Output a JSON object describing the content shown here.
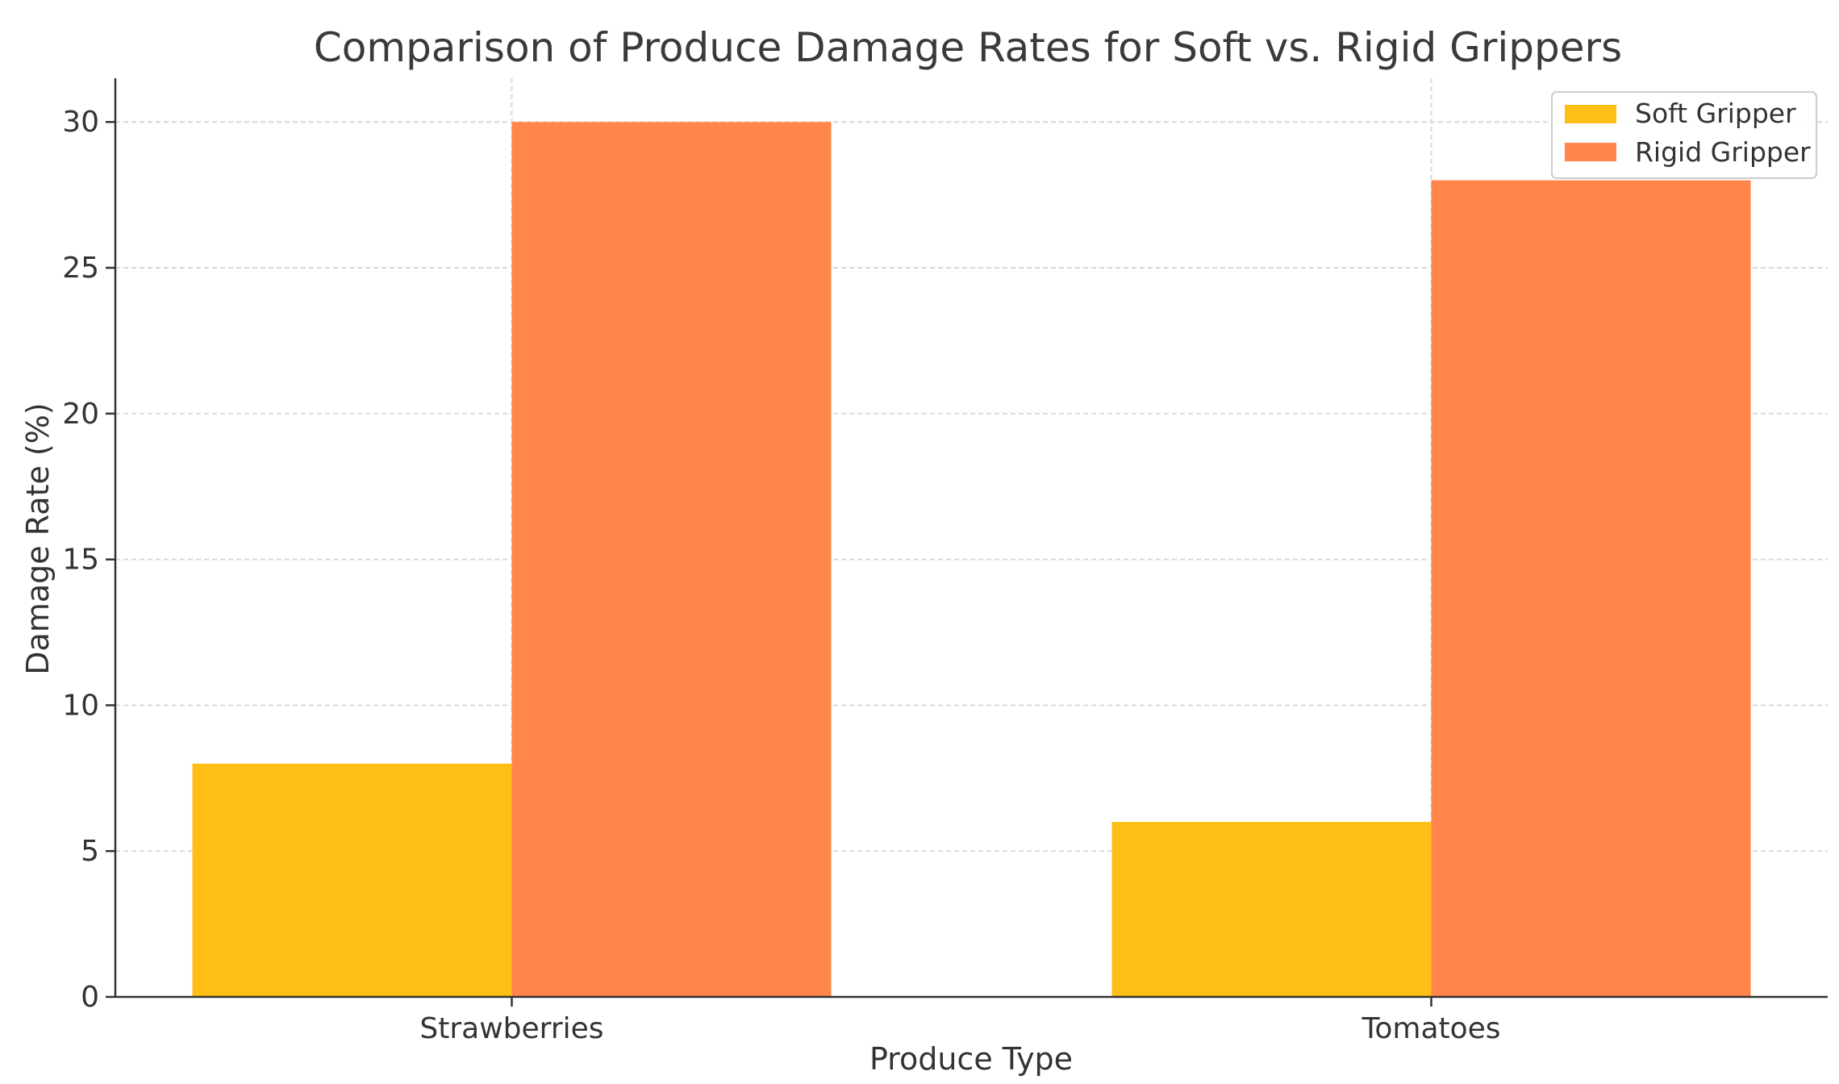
{
  "chart_data": {
    "type": "bar",
    "title": "Comparison of Produce Damage Rates for Soft vs. Rigid Grippers",
    "xlabel": "Produce Type",
    "ylabel": "Damage Rate (%)",
    "categories": [
      "Strawberries",
      "Tomatoes"
    ],
    "series": [
      {
        "name": "Soft Gripper",
        "values": [
          8,
          6
        ],
        "color": "#FFBE16"
      },
      {
        "name": "Rigid Gripper",
        "values": [
          30,
          28
        ],
        "color": "#FF854A"
      }
    ],
    "ylim": [
      0,
      31.5
    ],
    "yticks": [
      0,
      5,
      10,
      15,
      20,
      25,
      30
    ],
    "grid": true,
    "legend_position": "top-right"
  }
}
